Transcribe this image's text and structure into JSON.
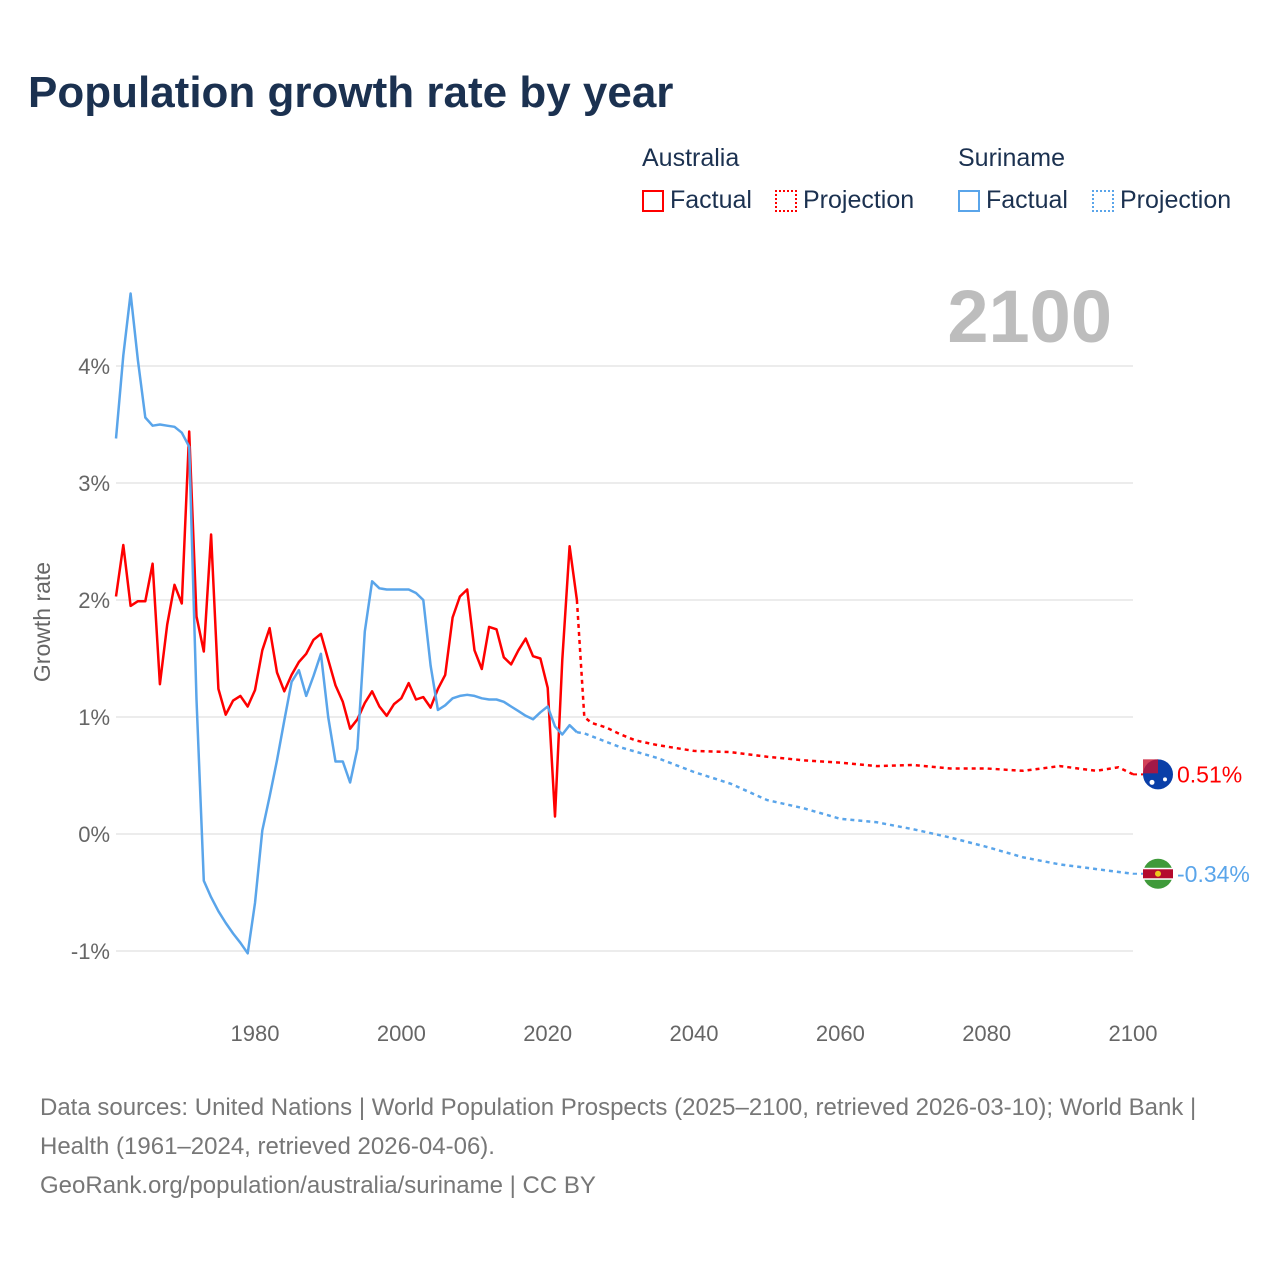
{
  "chart_data": {
    "type": "line",
    "title": "Population growth rate by year",
    "ylabel": "Growth rate",
    "xlabel": "",
    "year_watermark": "2100",
    "xlim": [
      1961,
      2100
    ],
    "ylim": [
      -1.5,
      4.8
    ],
    "x_ticks": [
      1980,
      2000,
      2020,
      2040,
      2060,
      2080,
      2100
    ],
    "x_tick_labels": [
      "1980",
      "2000",
      "2020",
      "2040",
      "2060",
      "2080",
      "2100"
    ],
    "y_ticks": [
      -1,
      0,
      1,
      2,
      3,
      4
    ],
    "y_tick_labels": [
      "-1%",
      "0%",
      "1%",
      "2%",
      "3%",
      "4%"
    ],
    "grid": true,
    "legend": {
      "placement": "top-right",
      "groups": [
        {
          "name": "Australia",
          "factual": "Factual",
          "projection": "Projection",
          "color": "#ff0000"
        },
        {
          "name": "Suriname",
          "factual": "Factual",
          "projection": "Projection",
          "color": "#5aa5ea"
        }
      ]
    },
    "series": [
      {
        "name": "Australia",
        "color": "#ff0000",
        "end_label": "0.51%",
        "factual": {
          "x": [
            1961,
            1962,
            1963,
            1964,
            1965,
            1966,
            1967,
            1968,
            1969,
            1970,
            1971,
            1972,
            1973,
            1974,
            1975,
            1976,
            1977,
            1978,
            1979,
            1980,
            1981,
            1982,
            1983,
            1984,
            1985,
            1986,
            1987,
            1988,
            1989,
            1990,
            1991,
            1992,
            1993,
            1994,
            1995,
            1996,
            1997,
            1998,
            1999,
            2000,
            2001,
            2002,
            2003,
            2004,
            2005,
            2006,
            2007,
            2008,
            2009,
            2010,
            2011,
            2012,
            2013,
            2014,
            2015,
            2016,
            2017,
            2018,
            2019,
            2020,
            2021,
            2022,
            2023,
            2024
          ],
          "y": [
            2.03,
            2.47,
            1.95,
            1.99,
            1.99,
            2.31,
            1.28,
            1.79,
            2.13,
            1.97,
            3.44,
            1.86,
            1.56,
            2.56,
            1.24,
            1.02,
            1.14,
            1.18,
            1.09,
            1.23,
            1.57,
            1.76,
            1.38,
            1.22,
            1.36,
            1.47,
            1.54,
            1.66,
            1.71,
            1.49,
            1.27,
            1.13,
            0.9,
            0.98,
            1.12,
            1.22,
            1.09,
            1.01,
            1.11,
            1.16,
            1.29,
            1.15,
            1.17,
            1.08,
            1.24,
            1.36,
            1.85,
            2.03,
            2.09,
            1.57,
            1.41,
            1.77,
            1.75,
            1.51,
            1.45,
            1.57,
            1.67,
            1.52,
            1.5,
            1.25,
            0.15,
            1.49,
            2.46,
            2.0
          ]
        },
        "projection": {
          "x": [
            2024,
            2025,
            2026,
            2028,
            2030,
            2032,
            2035,
            2040,
            2045,
            2050,
            2055,
            2060,
            2065,
            2070,
            2075,
            2080,
            2085,
            2090,
            2095,
            2098,
            2100
          ],
          "y": [
            2.0,
            1.0,
            0.95,
            0.91,
            0.85,
            0.8,
            0.76,
            0.71,
            0.7,
            0.66,
            0.63,
            0.61,
            0.58,
            0.59,
            0.56,
            0.56,
            0.54,
            0.58,
            0.54,
            0.57,
            0.51
          ]
        }
      },
      {
        "name": "Suriname",
        "color": "#5aa5ea",
        "end_label": "-0.34%",
        "factual": {
          "x": [
            1961,
            1962,
            1963,
            1964,
            1965,
            1966,
            1967,
            1968,
            1969,
            1970,
            1971,
            1972,
            1973,
            1974,
            1975,
            1976,
            1977,
            1978,
            1979,
            1980,
            1981,
            1982,
            1983,
            1984,
            1985,
            1986,
            1987,
            1988,
            1989,
            1990,
            1991,
            1992,
            1993,
            1994,
            1995,
            1996,
            1997,
            1998,
            1999,
            2000,
            2001,
            2002,
            2003,
            2004,
            2005,
            2006,
            2007,
            2008,
            2009,
            2010,
            2011,
            2012,
            2013,
            2014,
            2015,
            2016,
            2017,
            2018,
            2019,
            2020,
            2021,
            2022,
            2023,
            2024
          ],
          "y": [
            3.38,
            4.09,
            4.62,
            4.05,
            3.56,
            3.49,
            3.5,
            3.49,
            3.48,
            3.43,
            3.31,
            1.15,
            -0.4,
            -0.54,
            -0.66,
            -0.76,
            -0.85,
            -0.93,
            -1.02,
            -0.59,
            0.03,
            0.32,
            0.63,
            0.97,
            1.3,
            1.4,
            1.18,
            1.35,
            1.54,
            1.0,
            0.62,
            0.62,
            0.44,
            0.73,
            1.73,
            2.16,
            2.1,
            2.09,
            2.09,
            2.09,
            2.09,
            2.06,
            2.0,
            1.44,
            1.06,
            1.1,
            1.16,
            1.18,
            1.19,
            1.18,
            1.16,
            1.15,
            1.15,
            1.13,
            1.09,
            1.05,
            1.01,
            0.98,
            1.04,
            1.09,
            0.92,
            0.85,
            0.93,
            0.87
          ]
        },
        "projection": {
          "x": [
            2024,
            2025,
            2030,
            2035,
            2040,
            2045,
            2050,
            2055,
            2060,
            2065,
            2070,
            2075,
            2080,
            2085,
            2090,
            2095,
            2100
          ],
          "y": [
            0.87,
            0.86,
            0.74,
            0.65,
            0.53,
            0.43,
            0.29,
            0.22,
            0.13,
            0.1,
            0.04,
            -0.03,
            -0.11,
            -0.2,
            -0.26,
            -0.3,
            -0.34
          ]
        }
      }
    ]
  },
  "footer": {
    "sources": "Data sources: United Nations | World Population Prospects (2025–2100, retrieved 2026-03-10); World Bank | Health (1961–2024, retrieved 2026-04-06).",
    "link": "GeoRank.org/population/australia/suriname | CC BY"
  }
}
